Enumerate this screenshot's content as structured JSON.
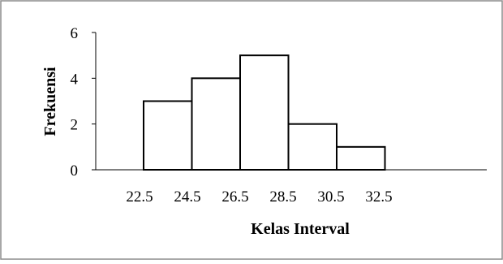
{
  "chart_data": {
    "type": "bar",
    "title": "",
    "xlabel": "Kelas Interval",
    "ylabel": "Frekuensi",
    "x_tick_labels": [
      "22.5",
      "24.5",
      "26.5",
      "28.5",
      "30.5",
      "32.5"
    ],
    "bin_edges": [
      22.5,
      24.5,
      26.5,
      28.5,
      30.5,
      32.5
    ],
    "values": [
      3,
      4,
      5,
      2,
      1
    ],
    "y_ticks": [
      "0",
      "2",
      "4",
      "6"
    ],
    "ylim": [
      0,
      6
    ],
    "grid": false,
    "legend": "none",
    "colors": {
      "bar_fill": "#ffffff",
      "bar_stroke": "#000000",
      "axis": "#000000",
      "frame": "#8c8c8c"
    }
  }
}
